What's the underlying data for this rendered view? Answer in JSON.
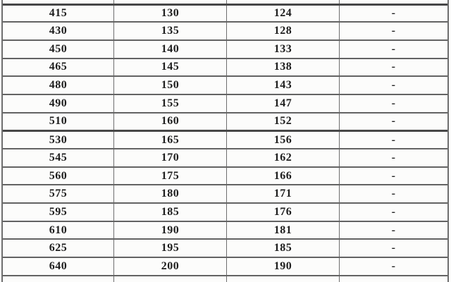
{
  "table": {
    "rows": [
      [
        "415",
        "130",
        "124",
        "-"
      ],
      [
        "430",
        "135",
        "128",
        "-"
      ],
      [
        "450",
        "140",
        "133",
        "-"
      ],
      [
        "465",
        "145",
        "138",
        "-"
      ],
      [
        "480",
        "150",
        "143",
        "-"
      ],
      [
        "490",
        "155",
        "147",
        "-"
      ],
      [
        "510",
        "160",
        "152",
        "-"
      ],
      [
        "530",
        "165",
        "156",
        "-"
      ],
      [
        "545",
        "170",
        "162",
        "-"
      ],
      [
        "560",
        "175",
        "166",
        "-"
      ],
      [
        "575",
        "180",
        "171",
        "-"
      ],
      [
        "595",
        "185",
        "176",
        "-"
      ],
      [
        "610",
        "190",
        "181",
        "-"
      ],
      [
        "625",
        "195",
        "185",
        "-"
      ],
      [
        "640",
        "200",
        "190",
        "-"
      ]
    ],
    "partial_row_top": [
      "",
      "",
      "",
      ""
    ],
    "partial_row_bottom": [
      "",
      "",
      "",
      ""
    ],
    "heavy_border_row_indexes": [
      0,
      7
    ]
  },
  "colors": {
    "background": "#fcfcfb",
    "border_horizontal": "#636363",
    "border_vertical": "#6e6e6e",
    "border_heavy": "#474747",
    "text": "#1e1e1e"
  }
}
